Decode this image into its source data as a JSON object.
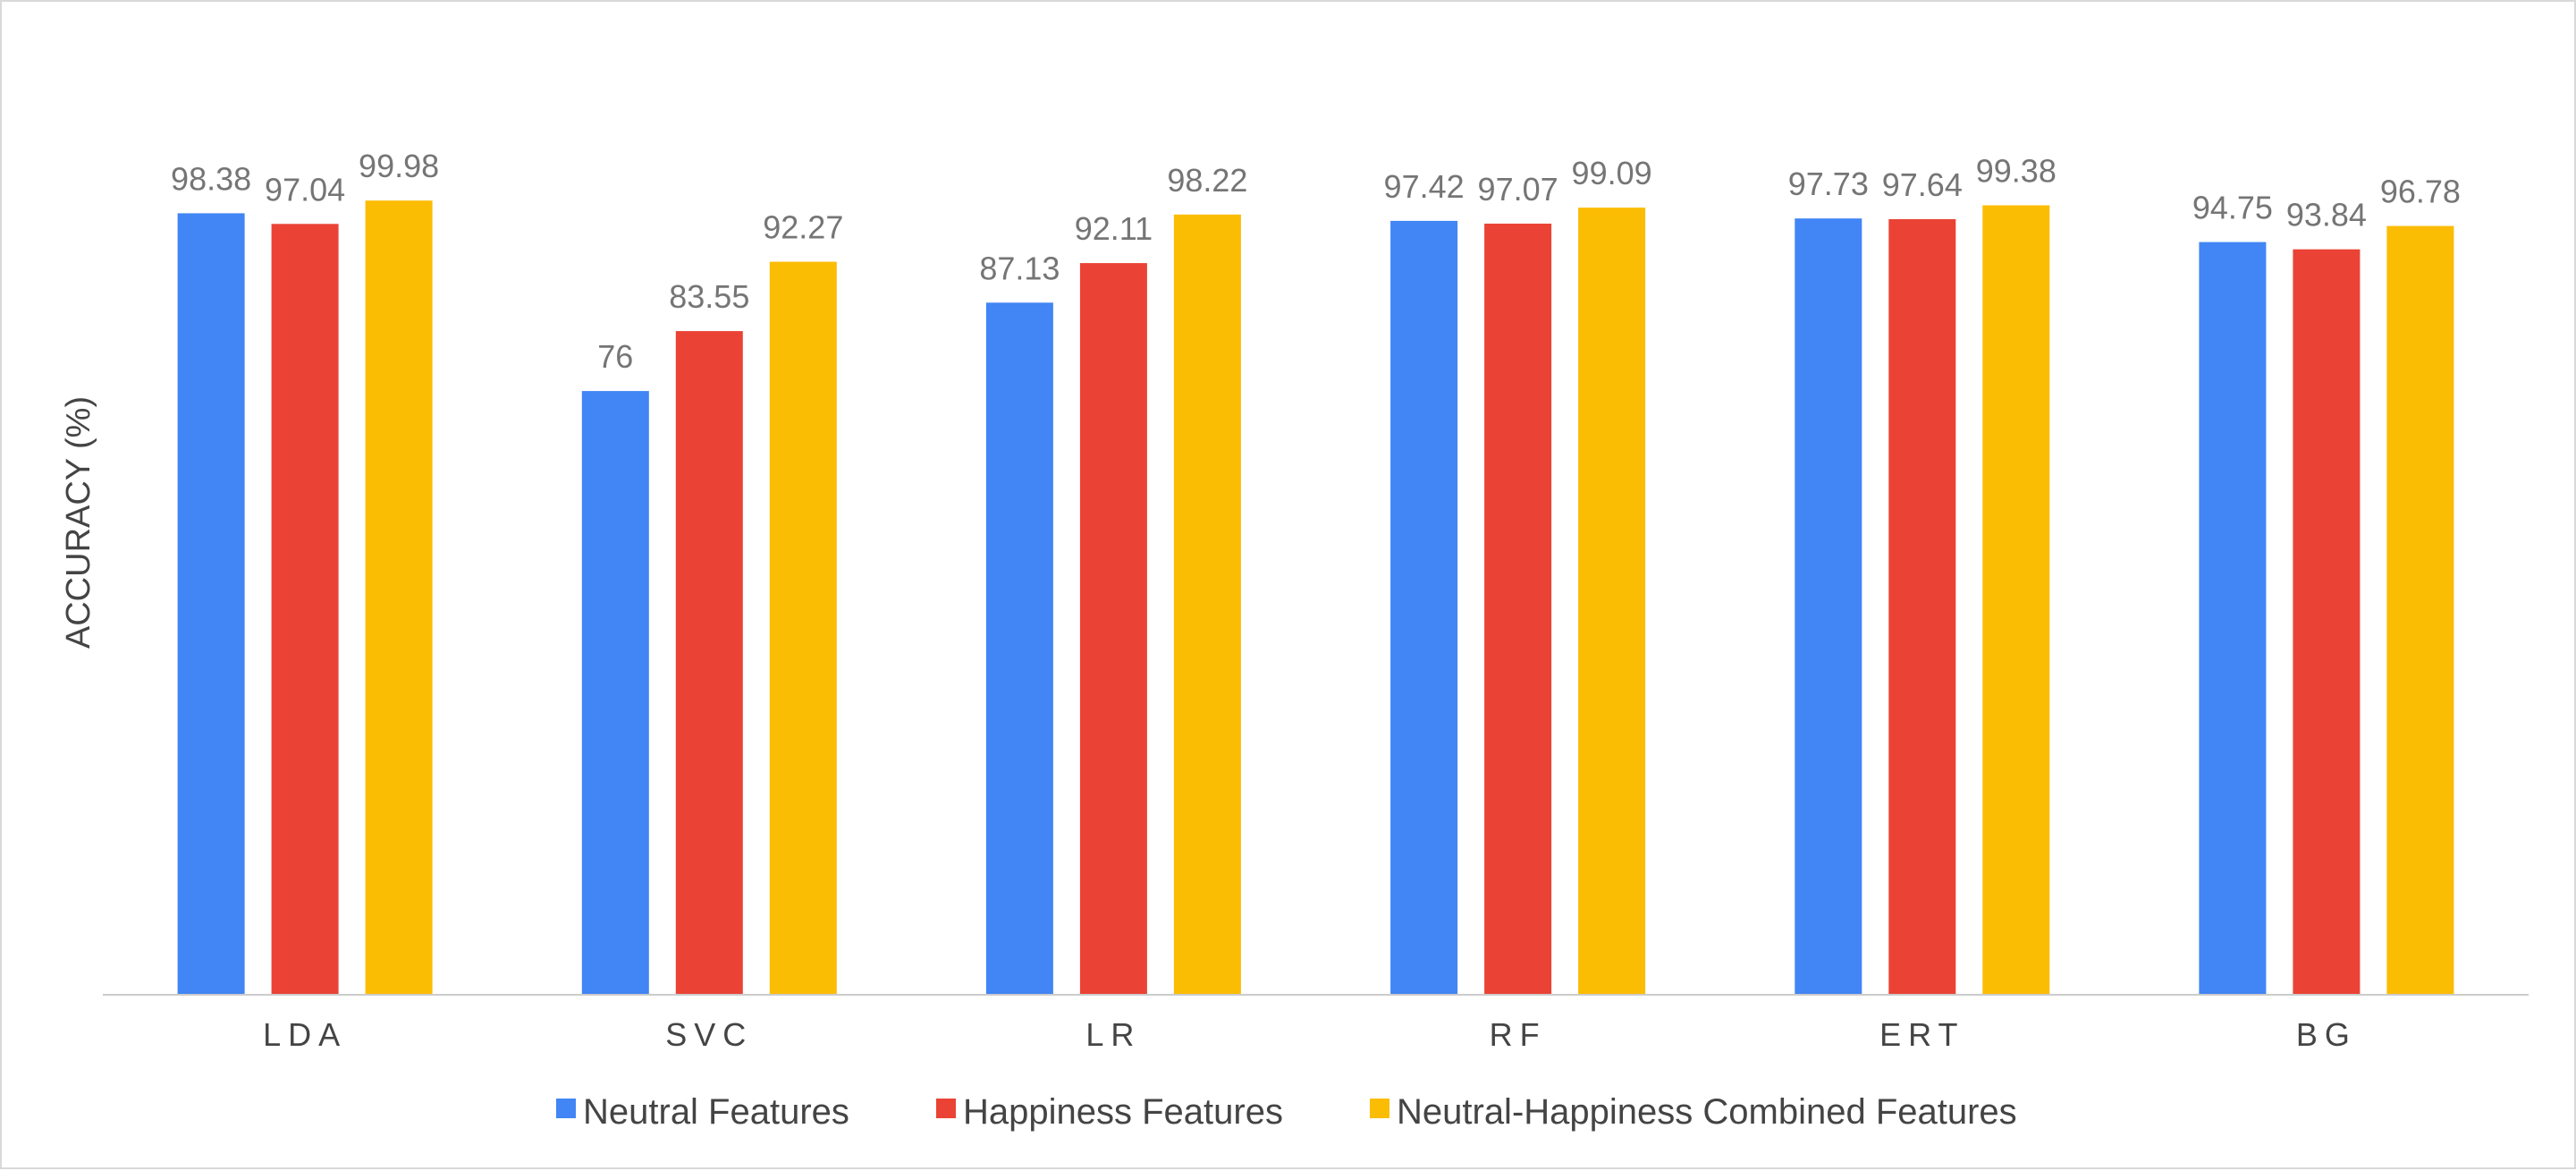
{
  "chart_data": {
    "type": "bar",
    "title": "",
    "xlabel": "",
    "ylabel": "ACCURACY (%)",
    "ylim": [
      0,
      100
    ],
    "grid": false,
    "legend_position": "bottom",
    "categories": [
      "LDA",
      "SVC",
      "LR",
      "RF",
      "ERT",
      "BG"
    ],
    "series": [
      {
        "name": "Neutral Features",
        "color": "#4285F4",
        "values": [
          98.38,
          76,
          87.13,
          97.42,
          97.73,
          94.75
        ]
      },
      {
        "name": "Happiness Features",
        "color": "#EA4335",
        "values": [
          97.04,
          83.55,
          92.11,
          97.07,
          97.64,
          93.84
        ]
      },
      {
        "name": "Neutral-Happiness Combined Features",
        "color": "#FBBC04",
        "values": [
          99.98,
          92.27,
          98.22,
          99.09,
          99.38,
          96.78
        ]
      }
    ]
  }
}
